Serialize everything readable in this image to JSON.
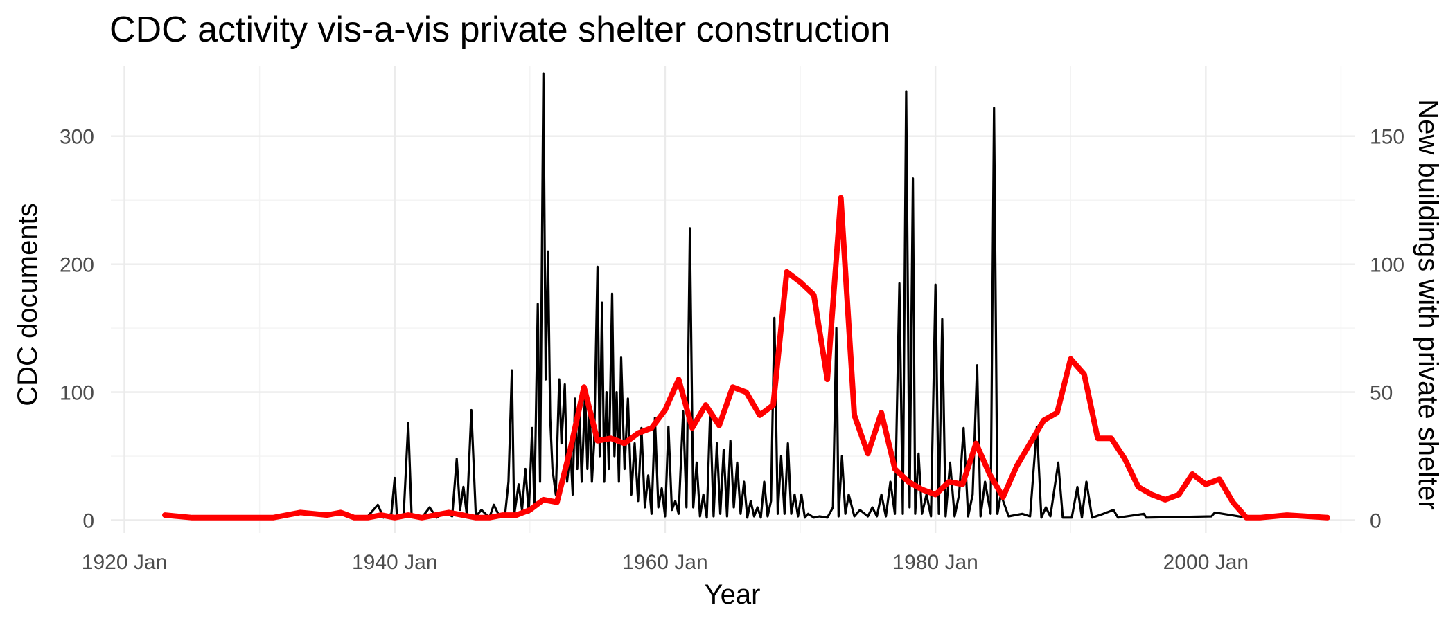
{
  "chart_data": {
    "type": "line",
    "title": "CDC activity vis-a-vis private shelter construction",
    "xlabel": "Year",
    "ylabel": "CDC documents",
    "y2label": "New buildings with private shelter",
    "xlim": [
      "1919-01",
      "2011-01"
    ],
    "ylim": [
      -10,
      355
    ],
    "y2lim": [
      -5,
      177.5
    ],
    "x_ticks": [
      {
        "x": "1920-01",
        "label": "1920 Jan"
      },
      {
        "x": "1940-01",
        "label": "1940 Jan"
      },
      {
        "x": "1960-01",
        "label": "1960 Jan"
      },
      {
        "x": "1980-01",
        "label": "1980 Jan"
      },
      {
        "x": "2000-01",
        "label": "2000 Jan"
      }
    ],
    "x_minor_ticks": [
      "1930-01",
      "1950-01",
      "1970-01",
      "1990-01",
      "2010-01"
    ],
    "y_ticks": [
      0,
      100,
      200,
      300
    ],
    "y_minor_ticks": [
      50,
      150,
      250
    ],
    "y2_ticks": [
      0,
      50,
      100,
      150
    ],
    "grid": true,
    "legend": "none",
    "colors": {
      "cdc": "#000000",
      "shelter": "#ff0000",
      "y2_axis_title": "#ff0000"
    },
    "series": [
      {
        "axis": "left",
        "points": [
          [
            "1938-01",
            3
          ],
          [
            "1938-10",
            12
          ],
          [
            "1939-03",
            2
          ],
          [
            "1939-10",
            5
          ],
          [
            "1940-01",
            33
          ],
          [
            "1940-03",
            2
          ],
          [
            "1940-09",
            5
          ],
          [
            "1941-01",
            76
          ],
          [
            "1941-04",
            3
          ],
          [
            "1942-01",
            2
          ],
          [
            "1942-08",
            10
          ],
          [
            "1943-02",
            2
          ],
          [
            "1943-10",
            6
          ],
          [
            "1944-04",
            3
          ],
          [
            "1944-08",
            48
          ],
          [
            "1944-11",
            8
          ],
          [
            "1945-02",
            26
          ],
          [
            "1945-05",
            4
          ],
          [
            "1945-09",
            86
          ],
          [
            "1946-01",
            3
          ],
          [
            "1946-06",
            8
          ],
          [
            "1947-01",
            2
          ],
          [
            "1947-05",
            12
          ],
          [
            "1947-10",
            3
          ],
          [
            "1948-03",
            5
          ],
          [
            "1948-06",
            30
          ],
          [
            "1948-09",
            117
          ],
          [
            "1948-11",
            4
          ],
          [
            "1949-03",
            28
          ],
          [
            "1949-06",
            8
          ],
          [
            "1949-09",
            40
          ],
          [
            "1949-12",
            6
          ],
          [
            "1950-03",
            72
          ],
          [
            "1950-05",
            10
          ],
          [
            "1950-08",
            169
          ],
          [
            "1950-10",
            30
          ],
          [
            "1951-01",
            349
          ],
          [
            "1951-03",
            110
          ],
          [
            "1951-05",
            210
          ],
          [
            "1951-07",
            80
          ],
          [
            "1951-09",
            40
          ],
          [
            "1951-12",
            20
          ],
          [
            "1952-03",
            110
          ],
          [
            "1952-05",
            60
          ],
          [
            "1952-08",
            106
          ],
          [
            "1952-10",
            30
          ],
          [
            "1953-01",
            55
          ],
          [
            "1953-03",
            20
          ],
          [
            "1953-05",
            95
          ],
          [
            "1953-07",
            40
          ],
          [
            "1953-09",
            85
          ],
          [
            "1953-11",
            30
          ],
          [
            "1954-02",
            100
          ],
          [
            "1954-04",
            40
          ],
          [
            "1954-06",
            90
          ],
          [
            "1954-08",
            30
          ],
          [
            "1954-10",
            60
          ],
          [
            "1955-01",
            198
          ],
          [
            "1955-03",
            50
          ],
          [
            "1955-05",
            170
          ],
          [
            "1955-07",
            30
          ],
          [
            "1955-09",
            100
          ],
          [
            "1955-11",
            40
          ],
          [
            "1956-02",
            177
          ],
          [
            "1956-04",
            50
          ],
          [
            "1956-06",
            100
          ],
          [
            "1956-08",
            30
          ],
          [
            "1956-10",
            127
          ],
          [
            "1957-01",
            40
          ],
          [
            "1957-04",
            95
          ],
          [
            "1957-07",
            20
          ],
          [
            "1957-10",
            60
          ],
          [
            "1958-01",
            15
          ],
          [
            "1958-04",
            72
          ],
          [
            "1958-07",
            10
          ],
          [
            "1958-10",
            35
          ],
          [
            "1959-01",
            5
          ],
          [
            "1959-04",
            80
          ],
          [
            "1959-07",
            10
          ],
          [
            "1959-10",
            25
          ],
          [
            "1960-01",
            3
          ],
          [
            "1960-04",
            73
          ],
          [
            "1960-07",
            8
          ],
          [
            "1960-10",
            15
          ],
          [
            "1961-01",
            5
          ],
          [
            "1961-05",
            85
          ],
          [
            "1961-08",
            10
          ],
          [
            "1961-11",
            228
          ],
          [
            "1962-02",
            10
          ],
          [
            "1962-05",
            45
          ],
          [
            "1962-08",
            3
          ],
          [
            "1962-11",
            20
          ],
          [
            "1963-02",
            2
          ],
          [
            "1963-05",
            85
          ],
          [
            "1963-08",
            3
          ],
          [
            "1963-11",
            60
          ],
          [
            "1964-02",
            5
          ],
          [
            "1964-05",
            55
          ],
          [
            "1964-08",
            3
          ],
          [
            "1964-11",
            62
          ],
          [
            "1965-02",
            10
          ],
          [
            "1965-05",
            45
          ],
          [
            "1965-08",
            5
          ],
          [
            "1965-11",
            30
          ],
          [
            "1966-02",
            2
          ],
          [
            "1966-05",
            15
          ],
          [
            "1966-08",
            3
          ],
          [
            "1966-11",
            10
          ],
          [
            "1967-02",
            2
          ],
          [
            "1967-05",
            30
          ],
          [
            "1967-08",
            3
          ],
          [
            "1967-11",
            15
          ],
          [
            "1968-02",
            158
          ],
          [
            "1968-05",
            5
          ],
          [
            "1968-08",
            50
          ],
          [
            "1968-11",
            5
          ],
          [
            "1969-02",
            60
          ],
          [
            "1969-05",
            5
          ],
          [
            "1969-08",
            20
          ],
          [
            "1969-11",
            3
          ],
          [
            "1970-02",
            20
          ],
          [
            "1970-05",
            2
          ],
          [
            "1970-08",
            5
          ],
          [
            "1971-01",
            2
          ],
          [
            "1971-06",
            3
          ],
          [
            "1972-01",
            2
          ],
          [
            "1972-06",
            10
          ],
          [
            "1972-09",
            150
          ],
          [
            "1972-11",
            3
          ],
          [
            "1973-02",
            50
          ],
          [
            "1973-05",
            5
          ],
          [
            "1973-08",
            20
          ],
          [
            "1974-01",
            3
          ],
          [
            "1974-06",
            8
          ],
          [
            "1975-01",
            3
          ],
          [
            "1975-05",
            10
          ],
          [
            "1975-09",
            3
          ],
          [
            "1976-01",
            20
          ],
          [
            "1976-05",
            3
          ],
          [
            "1976-09",
            30
          ],
          [
            "1977-01",
            5
          ],
          [
            "1977-05",
            185
          ],
          [
            "1977-08",
            5
          ],
          [
            "1977-11",
            335
          ],
          [
            "1978-02",
            10
          ],
          [
            "1978-05",
            267
          ],
          [
            "1978-07",
            5
          ],
          [
            "1978-10",
            52
          ],
          [
            "1979-01",
            5
          ],
          [
            "1979-05",
            20
          ],
          [
            "1979-09",
            3
          ],
          [
            "1980-01",
            184
          ],
          [
            "1980-04",
            5
          ],
          [
            "1980-07",
            157
          ],
          [
            "1980-10",
            3
          ],
          [
            "1981-02",
            45
          ],
          [
            "1981-06",
            3
          ],
          [
            "1981-10",
            20
          ],
          [
            "1982-02",
            72
          ],
          [
            "1982-06",
            3
          ],
          [
            "1982-10",
            20
          ],
          [
            "1983-02",
            121
          ],
          [
            "1983-05",
            3
          ],
          [
            "1983-09",
            30
          ],
          [
            "1984-02",
            5
          ],
          [
            "1984-05",
            322
          ],
          [
            "1984-08",
            5
          ],
          [
            "1984-11",
            20
          ],
          [
            "1985-06",
            3
          ],
          [
            "1986-06",
            5
          ],
          [
            "1987-01",
            3
          ],
          [
            "1987-07",
            73
          ],
          [
            "1987-11",
            2
          ],
          [
            "1988-03",
            10
          ],
          [
            "1988-07",
            3
          ],
          [
            "1989-02",
            45
          ],
          [
            "1989-06",
            2
          ],
          [
            "1990-02",
            2
          ],
          [
            "1990-07",
            26
          ],
          [
            "1990-11",
            2
          ],
          [
            "1991-03",
            30
          ],
          [
            "1991-08",
            2
          ],
          [
            "1992-06",
            5
          ],
          [
            "1993-03",
            8
          ],
          [
            "1993-07",
            2
          ],
          [
            "1995-06",
            5
          ],
          [
            "1995-08",
            2
          ],
          [
            "2000-06",
            3
          ],
          [
            "2000-09",
            6
          ],
          [
            "2003-01",
            2
          ]
        ]
      },
      {
        "axis": "right",
        "points": [
          [
            "1923-01",
            2
          ],
          [
            "1925-01",
            1
          ],
          [
            "1927-01",
            1
          ],
          [
            "1929-01",
            1
          ],
          [
            "1931-01",
            1
          ],
          [
            "1933-01",
            3
          ],
          [
            "1935-01",
            2
          ],
          [
            "1936-01",
            3
          ],
          [
            "1937-01",
            1
          ],
          [
            "1938-01",
            1
          ],
          [
            "1939-01",
            2
          ],
          [
            "1940-01",
            1
          ],
          [
            "1941-01",
            2
          ],
          [
            "1942-01",
            1
          ],
          [
            "1943-01",
            2
          ],
          [
            "1944-01",
            3
          ],
          [
            "1945-01",
            2
          ],
          [
            "1946-01",
            1
          ],
          [
            "1947-01",
            1
          ],
          [
            "1948-01",
            2
          ],
          [
            "1949-01",
            2
          ],
          [
            "1950-01",
            4
          ],
          [
            "1951-01",
            8
          ],
          [
            "1952-01",
            7
          ],
          [
            "1953-01",
            28
          ],
          [
            "1954-01",
            52
          ],
          [
            "1955-01",
            31
          ],
          [
            "1956-01",
            32
          ],
          [
            "1957-01",
            30
          ],
          [
            "1958-01",
            34
          ],
          [
            "1959-01",
            36
          ],
          [
            "1960-01",
            43
          ],
          [
            "1961-01",
            55
          ],
          [
            "1962-01",
            36
          ],
          [
            "1963-01",
            45
          ],
          [
            "1964-01",
            37
          ],
          [
            "1965-01",
            52
          ],
          [
            "1966-01",
            50
          ],
          [
            "1967-01",
            41
          ],
          [
            "1968-01",
            45
          ],
          [
            "1969-01",
            97
          ],
          [
            "1970-01",
            93
          ],
          [
            "1971-01",
            88
          ],
          [
            "1972-01",
            55
          ],
          [
            "1973-01",
            126
          ],
          [
            "1974-01",
            41
          ],
          [
            "1975-01",
            26
          ],
          [
            "1976-01",
            42
          ],
          [
            "1977-01",
            20
          ],
          [
            "1978-01",
            15
          ],
          [
            "1979-01",
            12
          ],
          [
            "1980-01",
            10
          ],
          [
            "1981-01",
            15
          ],
          [
            "1982-01",
            14
          ],
          [
            "1983-01",
            30
          ],
          [
            "1984-01",
            18
          ],
          [
            "1985-01",
            9
          ],
          [
            "1986-01",
            21
          ],
          [
            "1987-01",
            30
          ],
          [
            "1988-01",
            39
          ],
          [
            "1989-01",
            42
          ],
          [
            "1990-01",
            63
          ],
          [
            "1991-01",
            57
          ],
          [
            "1992-01",
            32
          ],
          [
            "1993-01",
            32
          ],
          [
            "1994-01",
            24
          ],
          [
            "1995-01",
            13
          ],
          [
            "1996-01",
            10
          ],
          [
            "1997-01",
            8
          ],
          [
            "1998-01",
            10
          ],
          [
            "1999-01",
            18
          ],
          [
            "2000-01",
            14
          ],
          [
            "2001-01",
            16
          ],
          [
            "2002-01",
            7
          ],
          [
            "2003-01",
            1
          ],
          [
            "2004-01",
            1
          ],
          [
            "2006-01",
            2
          ],
          [
            "2009-01",
            1
          ]
        ]
      }
    ]
  }
}
